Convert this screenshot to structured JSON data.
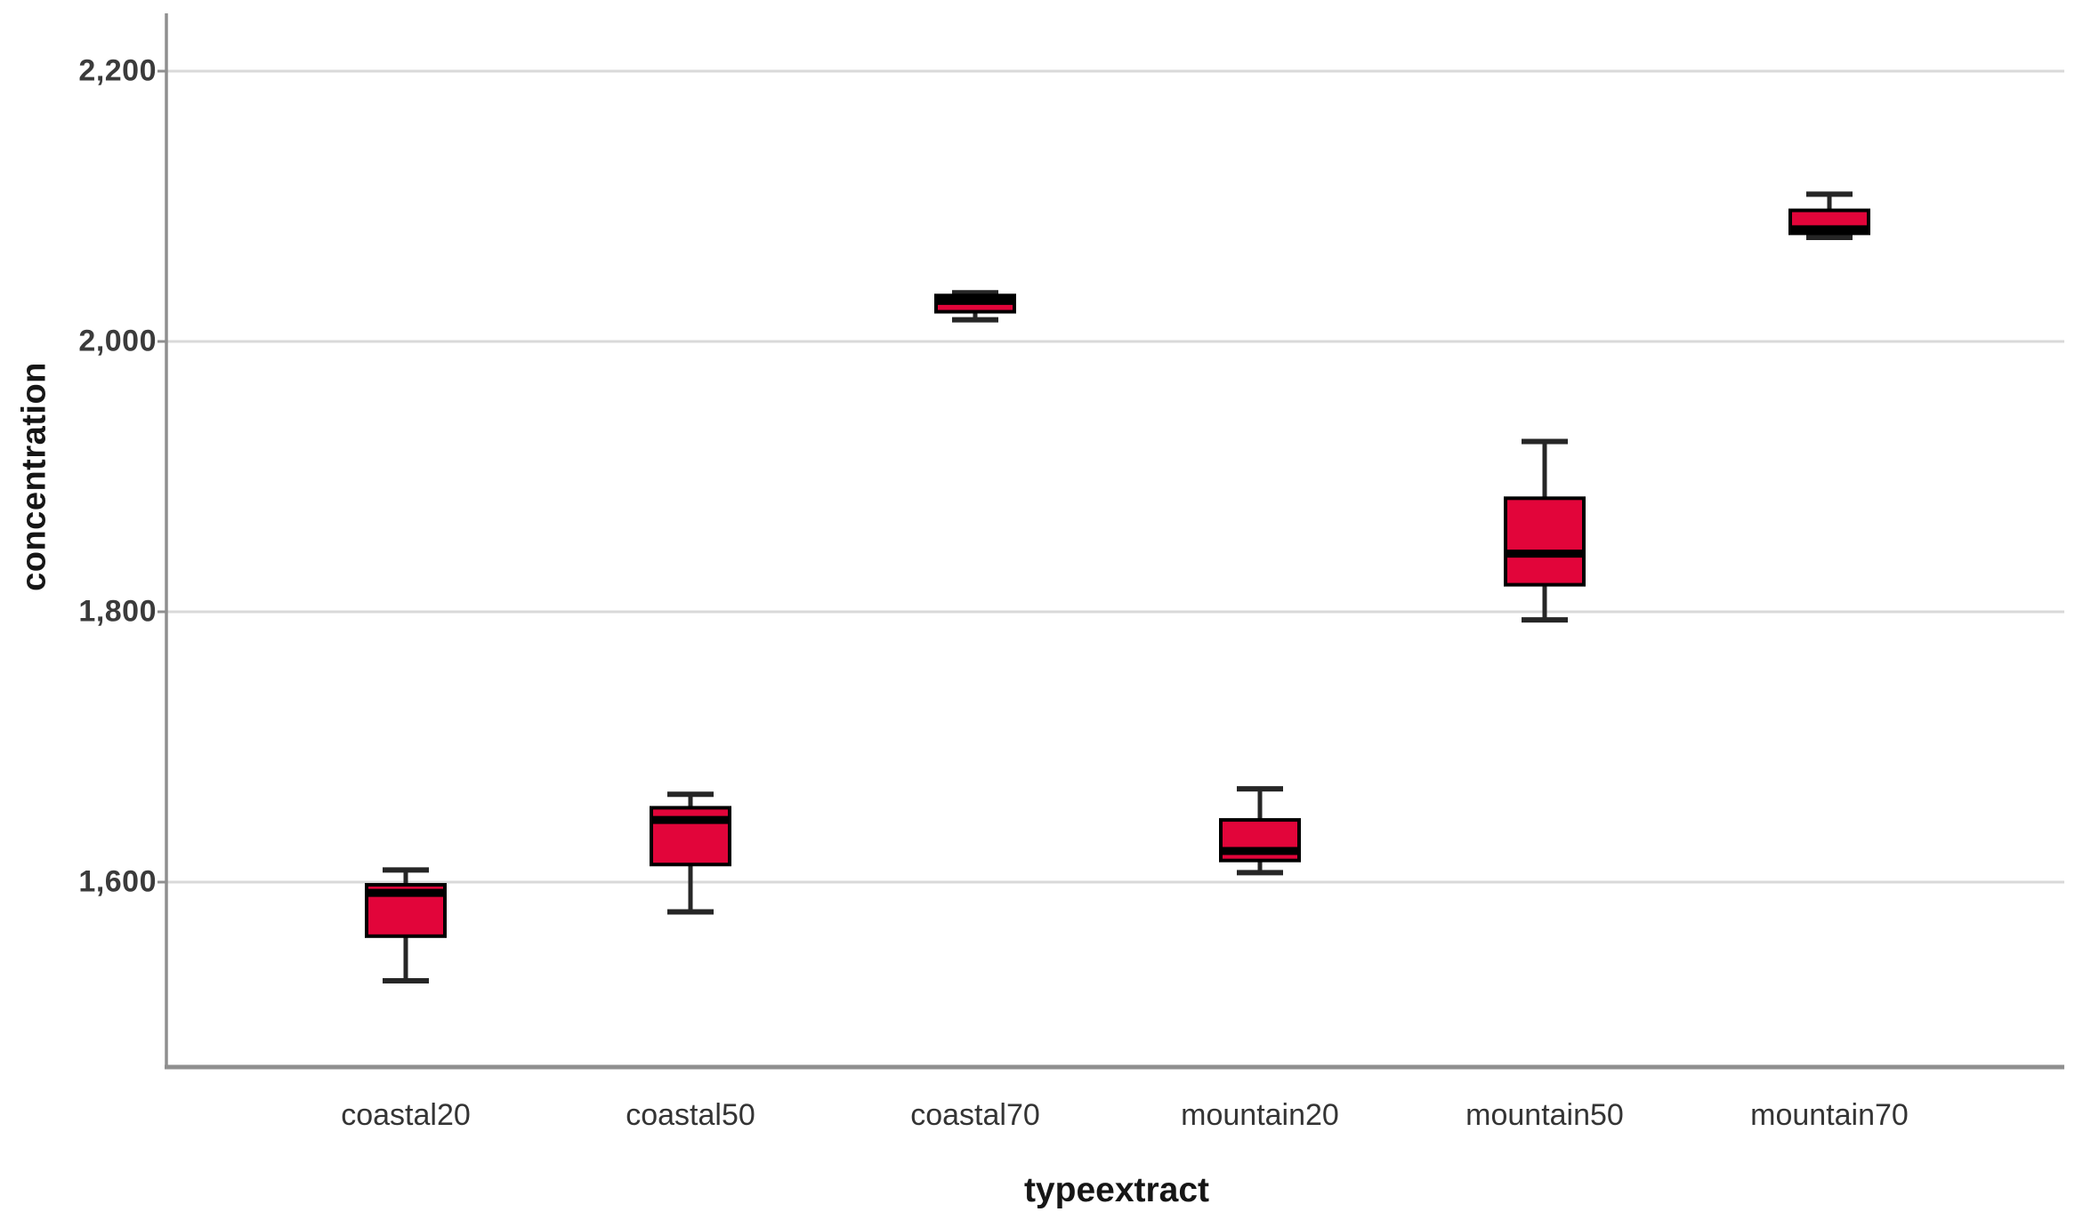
{
  "page": {
    "background": "#ffffff"
  },
  "chart_data": {
    "type": "boxplot",
    "title": "",
    "xlabel": "typeextract",
    "ylabel": "concentration",
    "categories": [
      "coastal20",
      "coastal50",
      "coastal70",
      "mountain20",
      "mountain50",
      "mountain70"
    ],
    "yticks": [
      2200,
      2000,
      1800,
      1600
    ],
    "ytick_labels": [
      "2,200",
      "2,000",
      "1,800",
      "1,600"
    ],
    "ylim": [
      1463,
      2243
    ],
    "grid": "horizontal",
    "legend": "none",
    "series": [
      {
        "category": "coastal20",
        "min": 1527,
        "q1": 1560,
        "median": 1592,
        "q3": 1598,
        "max": 1609
      },
      {
        "category": "coastal50",
        "min": 1578,
        "q1": 1613,
        "median": 1646,
        "q3": 1655,
        "max": 1665
      },
      {
        "category": "coastal70",
        "min": 2016,
        "q1": 2022,
        "median": 2030,
        "q3": 2034,
        "max": 2036
      },
      {
        "category": "mountain20",
        "min": 1607,
        "q1": 1616,
        "median": 1623,
        "q3": 1646,
        "max": 1669
      },
      {
        "category": "mountain50",
        "min": 1794,
        "q1": 1820,
        "median": 1843,
        "q3": 1884,
        "max": 1926
      },
      {
        "category": "mountain70",
        "min": 2077,
        "q1": 2080,
        "median": 2083,
        "q3": 2097,
        "max": 2109
      }
    ],
    "colors": {
      "box_fill": "#e2053a",
      "box_border": "#000000",
      "median": "#000000",
      "whisker": "#262626",
      "gridline": "#d9d9d9",
      "axis": "#8f8f8f",
      "tick_label": "#3b3b3b",
      "axis_title": "#161616"
    }
  }
}
